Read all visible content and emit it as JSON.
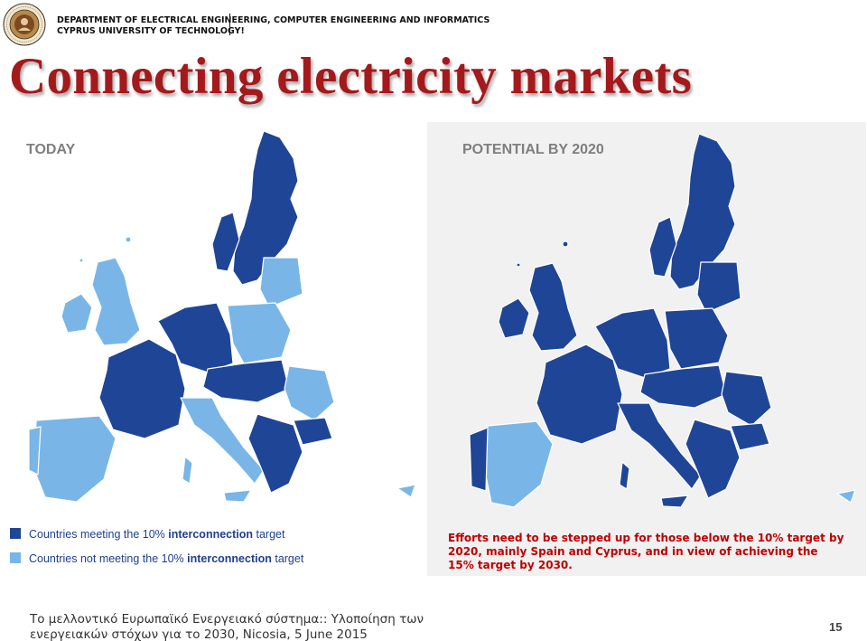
{
  "header": {
    "department": "DEPARTMENT OF ELECTRICAL ENGINEERING, COMPUTER ENGINEERING AND INFORMATICS",
    "university": "CYPRUS UNIVERSITY OF TECHNOLOGY!",
    "logo_ring_text": "CYPRUS UNIVERSITY OF TECHNOLOGY",
    "logo_year": "2004"
  },
  "slide": {
    "title": "Connecting electricity markets",
    "panel_today": "TODAY",
    "panel_2020": "POTENTIAL BY 2020"
  },
  "legend": {
    "meeting_prefix": "Countries meeting the 10% ",
    "meeting_bold": "interconnection",
    "meeting_suffix": " target",
    "not_meeting_prefix": "Countries not meeting the 10% ",
    "not_meeting_bold": "interconnection",
    "not_meeting_suffix": " target"
  },
  "note": "Efforts need to be stepped up for those below the 10% target by 2020, mainly Spain and Cyprus, and in view of achieving the 15% target by 2030.",
  "footer": {
    "line1": "Το μελλοντικό Ευρωπαϊκό Ενεργειακό σύστημα:: Υλοποίηση των",
    "line2": "ενεργειακών στόχων για το 2030, Nicosia, 5 June 2015",
    "page_number": "15"
  },
  "colors": {
    "title": "#a3191c",
    "meeting": "#1f4596",
    "not_meeting": "#79b6e7",
    "note": "#c00000",
    "panel_bg": "#f1f1f1"
  }
}
